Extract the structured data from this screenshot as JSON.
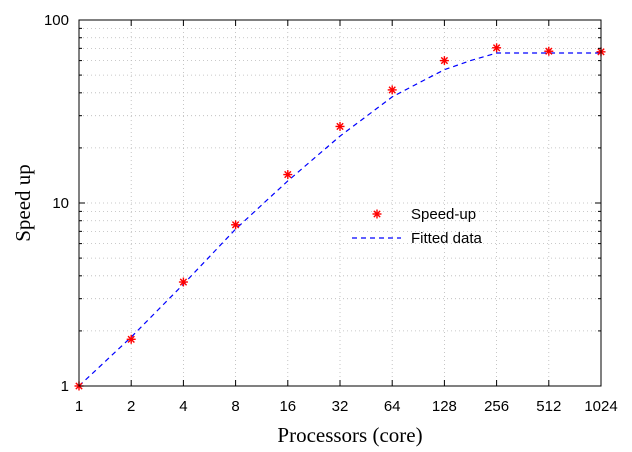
{
  "chart_data": {
    "type": "scatter",
    "xlabel": "Processors (core)",
    "ylabel": "Speed up",
    "x_scale": "log2",
    "y_scale": "log10",
    "xlim": [
      1,
      1024
    ],
    "ylim": [
      1,
      100
    ],
    "x_ticks": [
      "1",
      "2",
      "4",
      "8",
      "16",
      "32",
      "64",
      "128",
      "256",
      "512",
      "1024"
    ],
    "y_ticks": [
      "1",
      "10",
      "100"
    ],
    "grid": true,
    "legend_position": "center-right",
    "series": [
      {
        "name": "Speed-up",
        "kind": "points",
        "marker": "asterisk",
        "color": "#ff0000",
        "x": [
          1,
          2,
          4,
          8,
          16,
          32,
          64,
          128,
          256,
          512,
          1024
        ],
        "y": [
          1.0,
          1.8,
          3.7,
          7.6,
          14.3,
          26.2,
          41.5,
          60.0,
          70.5,
          67.5,
          67.0
        ]
      },
      {
        "name": "Fitted data",
        "kind": "line",
        "dash": "dashed",
        "color": "#0000ff",
        "x": [
          1,
          2,
          4,
          8,
          16,
          32,
          64,
          96,
          128,
          181,
          256,
          362,
          512,
          724,
          1024
        ],
        "y": [
          1.0,
          1.85,
          3.6,
          7.2,
          13.2,
          23.2,
          38.0,
          46.5,
          53.5,
          60.0,
          66.0,
          66.0,
          66.0,
          66.0,
          66.0
        ]
      }
    ]
  }
}
